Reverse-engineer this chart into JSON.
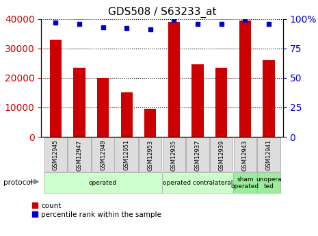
{
  "title": "GDS508 / S63233_at",
  "samples": [
    "GSM12945",
    "GSM12947",
    "GSM12949",
    "GSM12951",
    "GSM12953",
    "GSM12935",
    "GSM12937",
    "GSM12939",
    "GSM12943",
    "GSM12941"
  ],
  "counts": [
    33000,
    23500,
    20000,
    15000,
    9500,
    39000,
    24500,
    23500,
    39500,
    26000
  ],
  "percentiles": [
    97,
    96,
    93,
    92,
    91,
    99,
    96,
    96,
    99,
    96
  ],
  "ylim_left": [
    0,
    40000
  ],
  "ylim_right": [
    0,
    100
  ],
  "yticks_left": [
    0,
    10000,
    20000,
    30000,
    40000
  ],
  "yticks_right": [
    0,
    25,
    50,
    75,
    100
  ],
  "bar_color": "#cc0000",
  "dot_color": "#0000cc",
  "protocol_groups": [
    {
      "label": "operated",
      "start": 0,
      "end": 5,
      "color": "#ccffcc"
    },
    {
      "label": "operated contralateral",
      "start": 5,
      "end": 8,
      "color": "#ccffcc"
    },
    {
      "label": "sham\noperated",
      "start": 8,
      "end": 9,
      "color": "#99ee99"
    },
    {
      "label": "unopera\nted",
      "start": 9,
      "end": 10,
      "color": "#99ee99"
    }
  ],
  "legend_label_count": "count",
  "legend_label_pct": "percentile rank within the sample"
}
